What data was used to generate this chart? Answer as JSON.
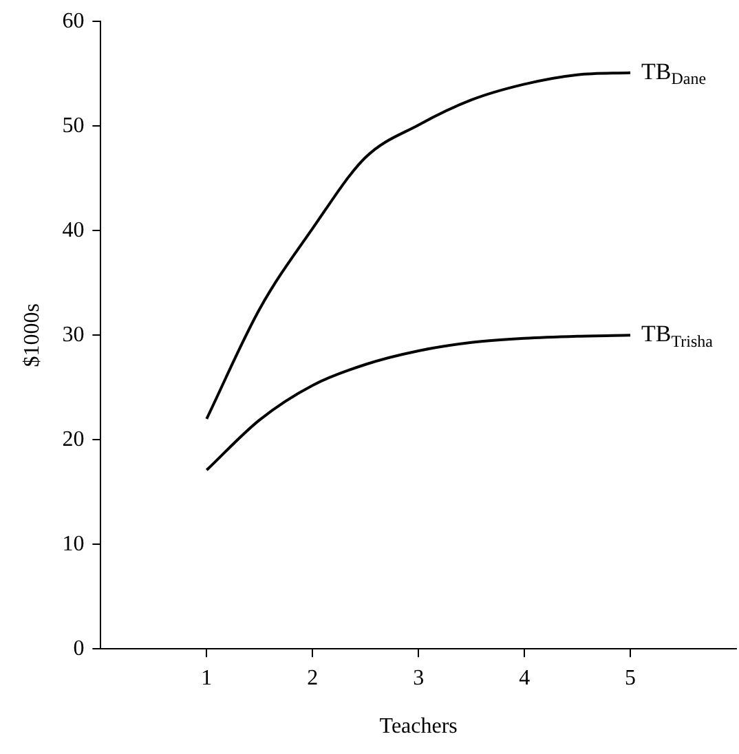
{
  "chart_data": {
    "type": "line",
    "xlabel": "Teachers",
    "ylabel": "$1000s",
    "x": [
      1,
      1.5,
      2,
      2.5,
      3,
      3.5,
      4,
      4.5,
      5
    ],
    "series": [
      {
        "name": "TB$_{Dane}$",
        "color": "#000000",
        "values": [
          22,
          32.5,
          40.2,
          47,
          50.1,
          52.5,
          54,
          54.9,
          55.1
        ]
      },
      {
        "name": "TB$_{Trisha}$",
        "color": "#000000",
        "values": [
          17.1,
          21.9,
          25.2,
          27.2,
          28.5,
          29.3,
          29.7,
          29.9,
          30
        ]
      }
    ],
    "xlim": [
      0,
      6
    ],
    "xticks": [
      1,
      2,
      3,
      4,
      5
    ],
    "ylim": [
      0,
      60
    ],
    "yticks": [
      0,
      10,
      20,
      30,
      40,
      50,
      60
    ],
    "grid": false,
    "legend": false,
    "marker": "none",
    "line_style": "solid"
  }
}
